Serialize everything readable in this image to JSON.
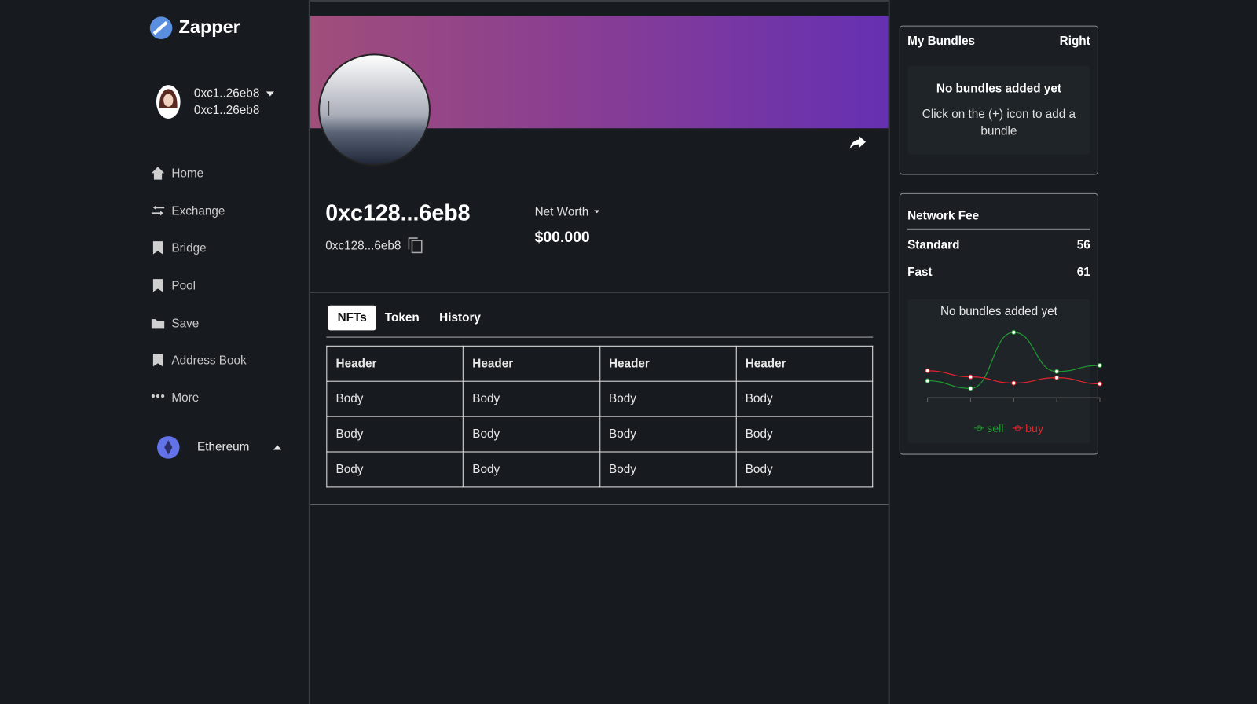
{
  "brand": "Zapper",
  "account": {
    "name": "0xc1..26eb8",
    "address": "0xc1..26eb8"
  },
  "nav": [
    "Home",
    "Exchange",
    "Bridge",
    "Pool",
    "Save",
    "Address Book",
    "More"
  ],
  "network": "Ethereum",
  "profile": {
    "name": "0xc128...6eb8",
    "address": "0xc128...6eb8",
    "net_worth_label": "Net Worth",
    "net_worth": "$00.000"
  },
  "tabs": [
    "NFTs",
    "Token",
    "History"
  ],
  "table": {
    "header": [
      "Header",
      "Header",
      "Header",
      "Header"
    ],
    "rows": [
      [
        "Body",
        "Body",
        "Body",
        "Body"
      ],
      [
        "Body",
        "Body",
        "Body",
        "Body"
      ],
      [
        "Body",
        "Body",
        "Body",
        "Body"
      ]
    ]
  },
  "bundles": {
    "title": "My Bundles",
    "action": "Right",
    "empty_title": "No bundles added yet",
    "empty_text": "Click on the (+) icon to add a bundle"
  },
  "network_fee": {
    "title": "Network Fee",
    "rows": [
      {
        "label": "Standard",
        "value": 56
      },
      {
        "label": "Fast",
        "value": 61
      }
    ],
    "empty_text": "No bundles added yet",
    "chart": {
      "type": "line",
      "ylim": [
        0,
        100
      ],
      "series": [
        {
          "name": "sell",
          "color": "#1f9a2e",
          "values": [
            22,
            12,
            85,
            34,
            42
          ]
        },
        {
          "name": "buy",
          "color": "#e0242b",
          "values": [
            35,
            27,
            19,
            26,
            18
          ]
        }
      ]
    }
  }
}
